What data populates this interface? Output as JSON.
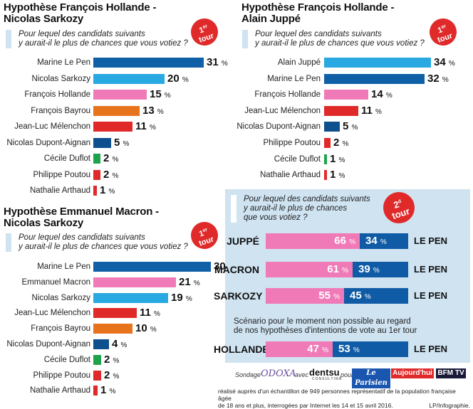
{
  "panels": [
    {
      "title": "Hypothèse François Hollande - Nicolas Sarkozy",
      "title_line1": "Hypothèse François Hollande -",
      "title_line2": "Nicolas Sarkozy",
      "question_line1": "Pour lequel des candidats suivants",
      "question_line2": "y aurait-il le plus de chances que vous votiez ?",
      "badge_num": "1",
      "badge_sup": "er",
      "badge_word": "tour"
    },
    {
      "title": "Hypothèse François Hollande - Alain Juppé",
      "title_line1": "Hypothèse François Hollande -",
      "title_line2": "Alain Juppé",
      "question_line1": "Pour lequel des candidats suivants",
      "question_line2": "y aurait-il le plus de chances que vous votiez ?",
      "badge_num": "1",
      "badge_sup": "er",
      "badge_word": "tour"
    },
    {
      "title": "Hypothèse Emmanuel Macron - Nicolas Sarkozy",
      "title_line1": "Hypothèse Emmanuel Macron -",
      "title_line2": "Nicolas Sarkozy",
      "question_line1": "Pour lequel des candidats suivants",
      "question_line2": "y aurait-il le plus de chances que vous votiez ?",
      "badge_num": "1",
      "badge_sup": "er",
      "badge_word": "tour"
    }
  ],
  "second_round": {
    "question_line1": "Pour lequel des candidats suivants",
    "question_line2": "y aurait-il le plus de chances",
    "question_line3": "que vous votiez ?",
    "badge_num": "2",
    "badge_sup": "d",
    "badge_word": "tour",
    "note_line1": "Scénario pour le moment non possible au regard",
    "note_line2": "de nos hypothèses d'intentions de vote au 1er tour"
  },
  "footer": {
    "sondage_label": "Sondage",
    "odoxa": "ODOXA",
    "avec_label": "avec",
    "dentsu": "dentsu",
    "dentsu_sub": "CONSULTING",
    "pour_label": "pour",
    "leparisien": "Le Parisien",
    "aujourdhui": "Aujourd'hui",
    "bfmtv": "BFM TV",
    "method_line1": "réalisé auprès d'un échantillon de 949 personnes représentatif de la population française âgée",
    "method_line2": "de 18 ans et plus, interrogées par Internet les 14 et 15 avril 2016.",
    "credit": "LP/Infographie."
  },
  "colors": {
    "le_pen": "#1060a8",
    "sarkozy": "#29a9e1",
    "hollande": "#f07ab8",
    "bayrou": "#e8731d",
    "melenchon": "#e02a2a",
    "dupont_aignan": "#0e4f8e",
    "duflot": "#1fa34a",
    "poutou": "#e02a2a",
    "arthaud": "#e02a2a",
    "macron": "#f07ab8",
    "juppe": "#29a9e1",
    "r2_left": "#f07ab8",
    "r2_right": "#0f5ba5",
    "question_box": "#cfe3f1",
    "badge": "#e02a2a"
  },
  "chart_data": [
    {
      "type": "bar",
      "title": "Hypothèse François Hollande - Nicolas Sarkozy",
      "unit": "%",
      "categories": [
        "Marine Le Pen",
        "Nicolas Sarkozy",
        "François Hollande",
        "François Bayrou",
        "Jean-Luc Mélenchon",
        "Nicolas Dupont-Aignan",
        "Cécile Duflot",
        "Philippe Poutou",
        "Nathalie Arthaud"
      ],
      "values": [
        31,
        20,
        15,
        13,
        11,
        5,
        2,
        2,
        1
      ],
      "colors": [
        "#1060a8",
        "#29a9e1",
        "#f07ab8",
        "#e8731d",
        "#e02a2a",
        "#0e4f8e",
        "#1fa34a",
        "#e02a2a",
        "#e02a2a"
      ]
    },
    {
      "type": "bar",
      "title": "Hypothèse François Hollande - Alain Juppé",
      "unit": "%",
      "categories": [
        "Alain Juppé",
        "Marine Le Pen",
        "François Hollande",
        "Jean-Luc Mélenchon",
        "Nicolas Dupont-Aignan",
        "Philippe Poutou",
        "Cécile Duflot",
        "Nathalie Arthaud"
      ],
      "values": [
        34,
        32,
        14,
        11,
        5,
        2,
        1,
        1
      ],
      "colors": [
        "#29a9e1",
        "#1060a8",
        "#f07ab8",
        "#e02a2a",
        "#0e4f8e",
        "#e02a2a",
        "#1fa34a",
        "#e02a2a"
      ]
    },
    {
      "type": "bar",
      "title": "Hypothèse Emmanuel Macron - Nicolas Sarkozy",
      "unit": "%",
      "categories": [
        "Marine Le Pen",
        "Emmanuel Macron",
        "Nicolas Sarkozy",
        "Jean-Luc Mélenchon",
        "François Bayrou",
        "Nicolas Dupont-Aignan",
        "Cécile Duflot",
        "Philippe Poutou",
        "Nathalie Arthaud"
      ],
      "values": [
        30,
        21,
        19,
        11,
        10,
        4,
        2,
        2,
        1
      ],
      "colors": [
        "#1060a8",
        "#f07ab8",
        "#29a9e1",
        "#e02a2a",
        "#e8731d",
        "#0e4f8e",
        "#1fa34a",
        "#e02a2a",
        "#e02a2a"
      ]
    },
    {
      "type": "bar",
      "title": "2d tour",
      "unit": "%",
      "stacked": true,
      "categories": [
        "JUPPÉ",
        "MACRON",
        "SARKOZY",
        "HOLLANDE"
      ],
      "opponent": "LE PEN",
      "series": [
        {
          "values": [
            66,
            61,
            55,
            47
          ]
        },
        {
          "values": [
            34,
            39,
            45,
            53
          ]
        }
      ]
    }
  ]
}
